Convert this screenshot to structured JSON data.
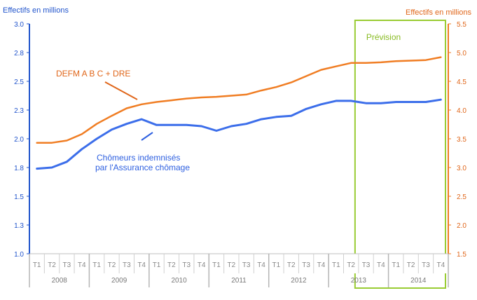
{
  "chart_data": {
    "type": "line",
    "y_left_label": "Effectifs en millions",
    "y_right_label": "Effectifs en millions",
    "y_left_ticks": [
      "1.0",
      "1.3",
      "1.5",
      "1.8",
      "2.0",
      "2.3",
      "2.5",
      "2.8",
      "3.0"
    ],
    "y_right_ticks": [
      "1.5",
      "2.0",
      "2.5",
      "3.0",
      "3.5",
      "4.0",
      "4.5",
      "5.0",
      "5.5"
    ],
    "y_left_range": [
      1.0,
      3.0
    ],
    "y_right_range": [
      1.5,
      5.5
    ],
    "quarters": [
      "T1",
      "T2",
      "T3",
      "T4",
      "T1",
      "T2",
      "T3",
      "T4",
      "T1",
      "T2",
      "T3",
      "T4",
      "T1",
      "T2",
      "T3",
      "T4",
      "T1",
      "T2",
      "T3",
      "T4",
      "T1",
      "T2",
      "T3",
      "T4",
      "T1",
      "T2",
      "T3",
      "T4"
    ],
    "years": [
      "2008",
      "2009",
      "2010",
      "2011",
      "2012",
      "2013",
      "2014"
    ],
    "series": [
      {
        "name": "DEFM A B C + DRE",
        "axis": "right",
        "color": "#f07d23",
        "values": [
          3.43,
          3.43,
          3.47,
          3.58,
          3.76,
          3.9,
          4.03,
          4.1,
          4.14,
          4.17,
          4.2,
          4.22,
          4.23,
          4.25,
          4.27,
          4.34,
          4.4,
          4.48,
          4.59,
          4.7,
          4.76,
          4.82,
          4.82,
          4.83,
          4.85,
          4.86,
          4.87,
          4.92
        ]
      },
      {
        "name": "Chômeurs indemnisés par l'Assurance chômage",
        "axis": "left",
        "color": "#3c6eea",
        "values": [
          1.74,
          1.75,
          1.8,
          1.91,
          2.0,
          2.08,
          2.13,
          2.17,
          2.12,
          2.12,
          2.12,
          2.11,
          2.07,
          2.11,
          2.13,
          2.17,
          2.19,
          2.2,
          2.26,
          2.3,
          2.33,
          2.33,
          2.31,
          2.31,
          2.32,
          2.32,
          2.32,
          2.34
        ]
      }
    ],
    "forecast_label": "Prévision",
    "forecast_start_index": 22,
    "grid": false,
    "annotations": [
      {
        "text": "DEFM A B C + DRE",
        "series": 0
      },
      {
        "text": "Chômeurs indemnisés",
        "series": 1
      },
      {
        "text": "par l'Assurance chômage",
        "series": 1
      }
    ]
  }
}
